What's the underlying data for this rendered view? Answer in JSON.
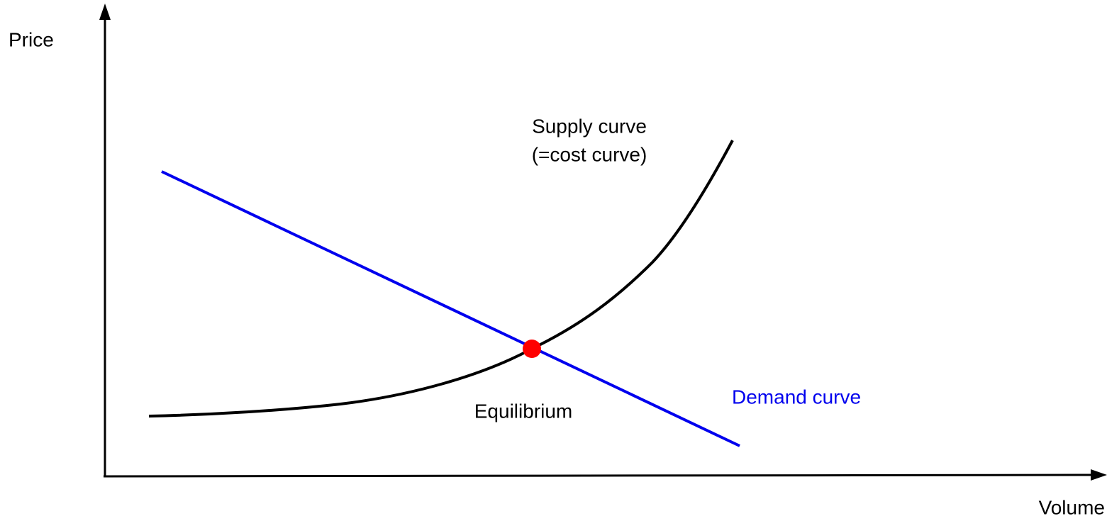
{
  "axes": {
    "y_label": "Price",
    "x_label": "Volume"
  },
  "supply": {
    "label": "Supply curve",
    "note": "(=cost curve)"
  },
  "demand": {
    "label": "Demand curve"
  },
  "equilibrium": {
    "label": "Equilibrium"
  }
}
